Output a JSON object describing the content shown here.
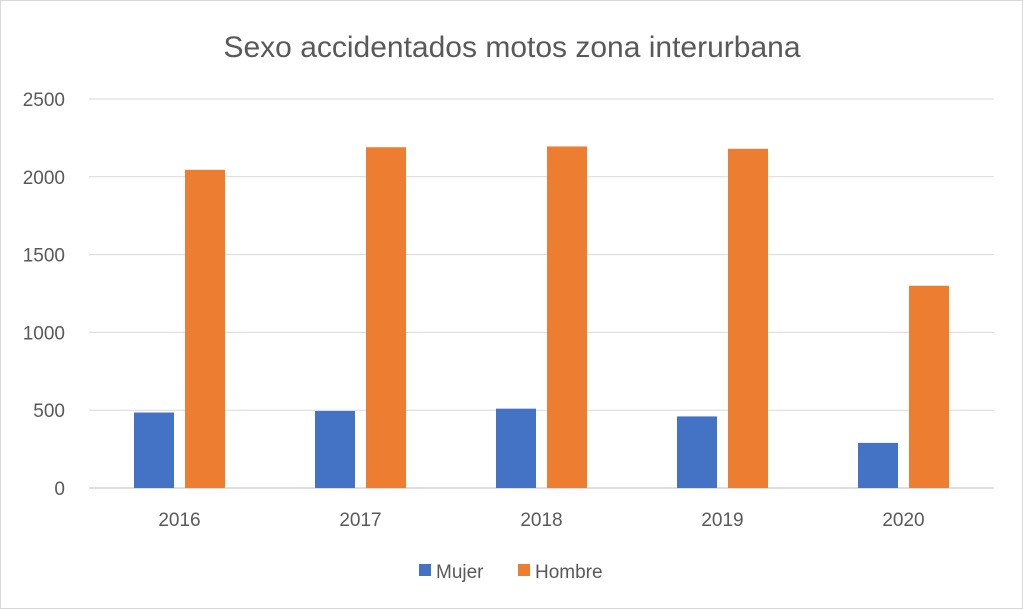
{
  "chart_data": {
    "type": "bar",
    "title": "Sexo accidentados motos zona interurbana",
    "categories": [
      "2016",
      "2017",
      "2018",
      "2019",
      "2020"
    ],
    "series": [
      {
        "name": "Mujer",
        "color": "#4472c4",
        "values": [
          485,
          495,
          510,
          460,
          290
        ]
      },
      {
        "name": "Hombre",
        "color": "#ed7d31",
        "values": [
          2045,
          2190,
          2195,
          2180,
          1300
        ]
      }
    ],
    "y_ticks": [
      "0",
      "500",
      "1000",
      "1500",
      "2000",
      "2500"
    ],
    "ylim": [
      0,
      2500
    ],
    "grid": true,
    "legend": "bottom"
  }
}
